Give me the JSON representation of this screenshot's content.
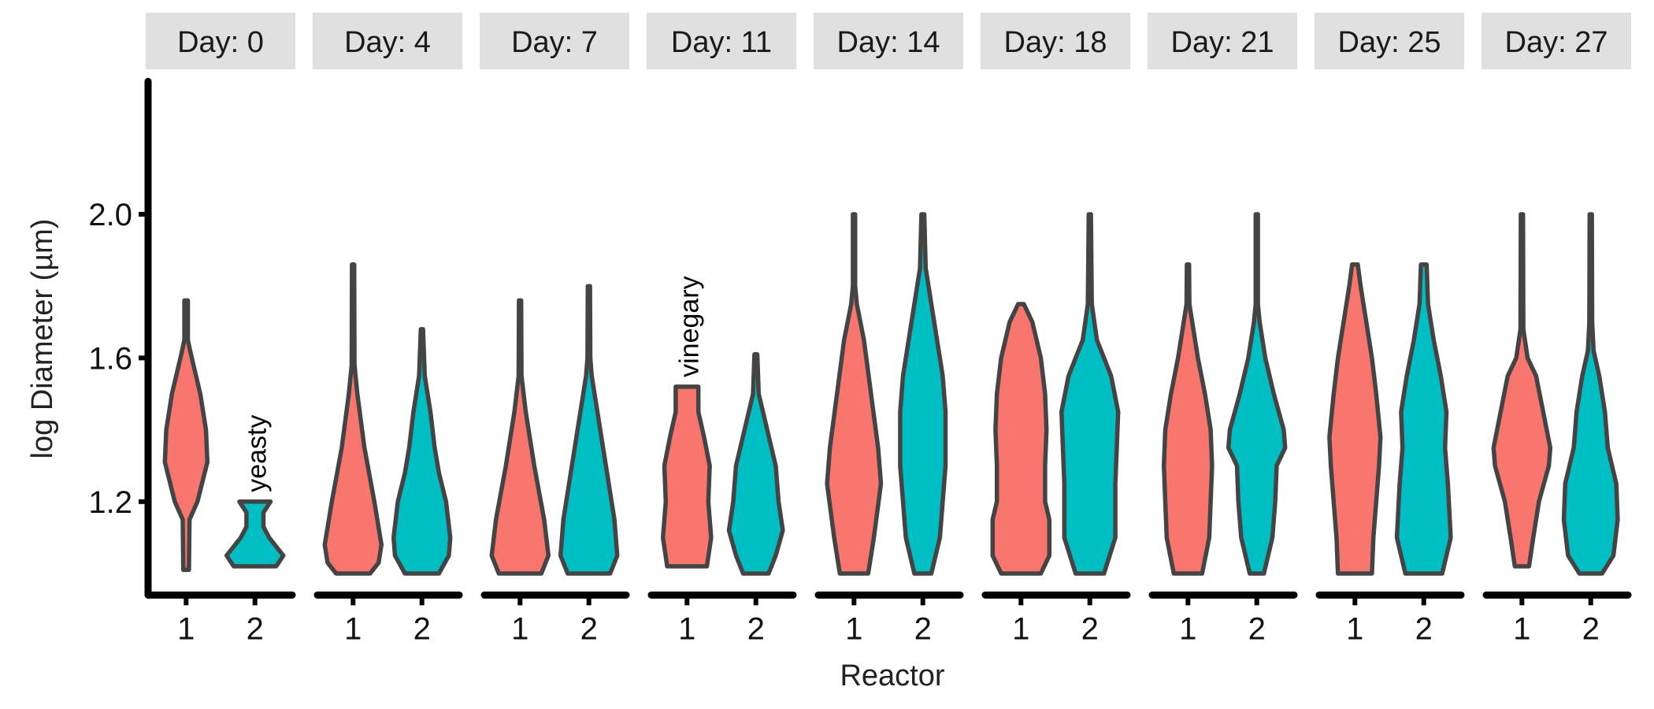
{
  "chart_data": {
    "type": "violin",
    "title": "",
    "xlabel": "Reactor",
    "ylabel": "log Diameter (µm)",
    "ylim": [
      0.94,
      2.37
    ],
    "yticks": [
      1.2,
      1.6,
      2.0
    ],
    "ytick_labels": [
      "1.2",
      "1.6",
      "2.0"
    ],
    "categories": [
      "1",
      "2"
    ],
    "grid": false,
    "colors": {
      "1": "#F8766D",
      "2": "#00BFC4",
      "outline": "#444444",
      "strip": "#E0E0E0"
    },
    "facets": [
      {
        "label": "Day: 0",
        "violins": [
          {
            "reactor": "1",
            "min": 1.01,
            "max": 1.76,
            "profile": [
              [
                1.01,
                0.1
              ],
              [
                1.15,
                0.12
              ],
              [
                1.2,
                0.4
              ],
              [
                1.31,
                0.75
              ],
              [
                1.4,
                0.7
              ],
              [
                1.5,
                0.5
              ],
              [
                1.6,
                0.2
              ],
              [
                1.65,
                0.06
              ],
              [
                1.76,
                0.06
              ]
            ]
          },
          {
            "reactor": "2",
            "min": 1.02,
            "max": 1.2,
            "profile": [
              [
                1.02,
                0.75
              ],
              [
                1.05,
                1.0
              ],
              [
                1.1,
                0.5
              ],
              [
                1.13,
                0.3
              ],
              [
                1.17,
                0.3
              ],
              [
                1.2,
                0.55
              ]
            ],
            "annotation": "yeasty"
          }
        ]
      },
      {
        "label": "Day: 4",
        "violins": [
          {
            "reactor": "1",
            "min": 1.0,
            "max": 1.86,
            "profile": [
              [
                1.0,
                0.6
              ],
              [
                1.03,
                0.9
              ],
              [
                1.08,
                1.0
              ],
              [
                1.2,
                0.75
              ],
              [
                1.35,
                0.4
              ],
              [
                1.5,
                0.15
              ],
              [
                1.58,
                0.05
              ],
              [
                1.86,
                0.04
              ]
            ]
          },
          {
            "reactor": "2",
            "min": 1.0,
            "max": 1.68,
            "profile": [
              [
                1.0,
                0.6
              ],
              [
                1.05,
                0.95
              ],
              [
                1.1,
                1.0
              ],
              [
                1.2,
                0.85
              ],
              [
                1.28,
                0.6
              ],
              [
                1.35,
                0.45
              ],
              [
                1.45,
                0.3
              ],
              [
                1.55,
                0.1
              ],
              [
                1.68,
                0.04
              ]
            ]
          }
        ]
      },
      {
        "label": "Day: 7",
        "violins": [
          {
            "reactor": "1",
            "min": 1.0,
            "max": 1.76,
            "profile": [
              [
                1.0,
                0.75
              ],
              [
                1.05,
                1.0
              ],
              [
                1.15,
                0.85
              ],
              [
                1.3,
                0.5
              ],
              [
                1.45,
                0.2
              ],
              [
                1.55,
                0.05
              ],
              [
                1.76,
                0.04
              ]
            ]
          },
          {
            "reactor": "2",
            "min": 1.0,
            "max": 1.8,
            "profile": [
              [
                1.0,
                0.75
              ],
              [
                1.05,
                1.0
              ],
              [
                1.15,
                0.9
              ],
              [
                1.3,
                0.6
              ],
              [
                1.45,
                0.3
              ],
              [
                1.55,
                0.1
              ],
              [
                1.6,
                0.05
              ],
              [
                1.8,
                0.04
              ]
            ]
          }
        ]
      },
      {
        "label": "Day: 11",
        "violins": [
          {
            "reactor": "1",
            "min": 1.02,
            "max": 1.52,
            "profile": [
              [
                1.02,
                0.7
              ],
              [
                1.1,
                0.85
              ],
              [
                1.2,
                0.75
              ],
              [
                1.3,
                0.8
              ],
              [
                1.38,
                0.6
              ],
              [
                1.45,
                0.4
              ],
              [
                1.52,
                0.4
              ]
            ],
            "annotation": "vinegary"
          },
          {
            "reactor": "2",
            "min": 1.0,
            "max": 1.61,
            "profile": [
              [
                1.0,
                0.45
              ],
              [
                1.05,
                0.7
              ],
              [
                1.12,
                0.95
              ],
              [
                1.2,
                0.8
              ],
              [
                1.3,
                0.7
              ],
              [
                1.4,
                0.4
              ],
              [
                1.5,
                0.1
              ],
              [
                1.61,
                0.05
              ]
            ]
          }
        ]
      },
      {
        "label": "Day: 14",
        "violins": [
          {
            "reactor": "1",
            "min": 1.0,
            "max": 2.0,
            "profile": [
              [
                1.0,
                0.5
              ],
              [
                1.1,
                0.7
              ],
              [
                1.25,
                0.95
              ],
              [
                1.35,
                0.85
              ],
              [
                1.5,
                0.6
              ],
              [
                1.65,
                0.35
              ],
              [
                1.75,
                0.1
              ],
              [
                1.8,
                0.04
              ],
              [
                2.0,
                0.04
              ]
            ]
          },
          {
            "reactor": "2",
            "min": 1.0,
            "max": 2.0,
            "profile": [
              [
                1.0,
                0.3
              ],
              [
                1.1,
                0.6
              ],
              [
                1.3,
                0.8
              ],
              [
                1.45,
                0.8
              ],
              [
                1.55,
                0.7
              ],
              [
                1.7,
                0.4
              ],
              [
                1.85,
                0.1
              ],
              [
                2.0,
                0.05
              ]
            ]
          }
        ]
      },
      {
        "label": "Day: 18",
        "violins": [
          {
            "reactor": "1",
            "min": 1.0,
            "max": 1.75,
            "profile": [
              [
                1.0,
                0.7
              ],
              [
                1.05,
                1.0
              ],
              [
                1.15,
                1.0
              ],
              [
                1.2,
                0.85
              ],
              [
                1.3,
                0.85
              ],
              [
                1.4,
                0.9
              ],
              [
                1.5,
                0.85
              ],
              [
                1.6,
                0.7
              ],
              [
                1.7,
                0.4
              ],
              [
                1.75,
                0.1
              ]
            ]
          },
          {
            "reactor": "2",
            "min": 1.0,
            "max": 2.0,
            "profile": [
              [
                1.0,
                0.5
              ],
              [
                1.1,
                0.9
              ],
              [
                1.25,
                0.9
              ],
              [
                1.35,
                0.95
              ],
              [
                1.45,
                1.0
              ],
              [
                1.55,
                0.75
              ],
              [
                1.6,
                0.5
              ],
              [
                1.65,
                0.25
              ],
              [
                1.75,
                0.07
              ],
              [
                2.0,
                0.04
              ]
            ]
          }
        ]
      },
      {
        "label": "Day: 21",
        "violins": [
          {
            "reactor": "1",
            "min": 1.0,
            "max": 1.86,
            "profile": [
              [
                1.0,
                0.5
              ],
              [
                1.1,
                0.75
              ],
              [
                1.3,
                0.85
              ],
              [
                1.4,
                0.8
              ],
              [
                1.5,
                0.6
              ],
              [
                1.6,
                0.35
              ],
              [
                1.7,
                0.15
              ],
              [
                1.75,
                0.05
              ],
              [
                1.86,
                0.04
              ]
            ]
          },
          {
            "reactor": "2",
            "min": 1.0,
            "max": 2.0,
            "profile": [
              [
                1.0,
                0.25
              ],
              [
                1.1,
                0.55
              ],
              [
                1.2,
                0.65
              ],
              [
                1.3,
                0.7
              ],
              [
                1.35,
                1.0
              ],
              [
                1.4,
                0.95
              ],
              [
                1.5,
                0.6
              ],
              [
                1.6,
                0.3
              ],
              [
                1.7,
                0.1
              ],
              [
                1.75,
                0.04
              ],
              [
                2.0,
                0.04
              ]
            ]
          }
        ]
      },
      {
        "label": "Day: 25",
        "violins": [
          {
            "reactor": "1",
            "min": 1.0,
            "max": 1.86,
            "profile": [
              [
                1.0,
                0.6
              ],
              [
                1.1,
                0.65
              ],
              [
                1.3,
                0.85
              ],
              [
                1.38,
                0.9
              ],
              [
                1.5,
                0.75
              ],
              [
                1.6,
                0.6
              ],
              [
                1.7,
                0.4
              ],
              [
                1.8,
                0.2
              ],
              [
                1.86,
                0.1
              ]
            ]
          },
          {
            "reactor": "2",
            "min": 1.0,
            "max": 1.86,
            "profile": [
              [
                1.0,
                0.65
              ],
              [
                1.1,
                0.95
              ],
              [
                1.25,
                0.85
              ],
              [
                1.35,
                0.75
              ],
              [
                1.45,
                0.8
              ],
              [
                1.55,
                0.6
              ],
              [
                1.65,
                0.35
              ],
              [
                1.75,
                0.15
              ],
              [
                1.86,
                0.1
              ]
            ]
          }
        ]
      },
      {
        "label": "Day: 27",
        "violins": [
          {
            "reactor": "1",
            "min": 1.02,
            "max": 2.0,
            "profile": [
              [
                1.02,
                0.25
              ],
              [
                1.1,
                0.4
              ],
              [
                1.2,
                0.6
              ],
              [
                1.3,
                0.95
              ],
              [
                1.35,
                1.0
              ],
              [
                1.45,
                0.75
              ],
              [
                1.55,
                0.5
              ],
              [
                1.6,
                0.2
              ],
              [
                1.68,
                0.05
              ],
              [
                2.0,
                0.04
              ]
            ]
          },
          {
            "reactor": "2",
            "min": 1.0,
            "max": 2.0,
            "profile": [
              [
                1.0,
                0.4
              ],
              [
                1.05,
                0.8
              ],
              [
                1.15,
                0.95
              ],
              [
                1.25,
                0.9
              ],
              [
                1.35,
                0.6
              ],
              [
                1.45,
                0.5
              ],
              [
                1.55,
                0.3
              ],
              [
                1.62,
                0.1
              ],
              [
                1.7,
                0.05
              ],
              [
                2.0,
                0.04
              ]
            ]
          }
        ]
      }
    ]
  }
}
